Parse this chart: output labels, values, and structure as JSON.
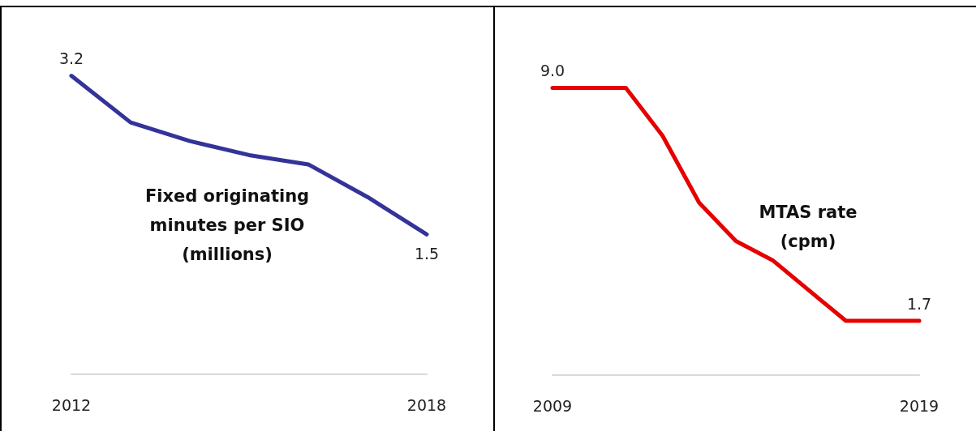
{
  "chart_data": [
    {
      "type": "line",
      "x": [
        2012,
        2013,
        2014,
        2015,
        2016,
        2017,
        2018
      ],
      "xlim": [
        2012,
        2018
      ],
      "xticks": [
        2012,
        2018
      ],
      "tick_labels": "x",
      "marker": "none",
      "series": [
        {
          "color": "#333399",
          "values": [
            3.2,
            2.7,
            2.5,
            2.35,
            2.25,
            1.9,
            1.5
          ],
          "value_labels": [
            "3.2",
            null,
            null,
            null,
            null,
            null,
            "1.5"
          ]
        }
      ],
      "annotations": [
        "Fixed originating\nminutes per SIO\n(millions)"
      ]
    },
    {
      "type": "line",
      "x": [
        2009,
        2011,
        2012,
        2013,
        2014,
        2015,
        2017,
        2019
      ],
      "xlim": [
        2009,
        2019
      ],
      "xticks": [
        2009,
        2019
      ],
      "tick_labels": "x",
      "marker": "none",
      "series": [
        {
          "color": "#e60000",
          "values": [
            9.0,
            9.0,
            7.5,
            5.4,
            4.2,
            3.6,
            1.7,
            1.7
          ],
          "value_labels": [
            "9.0",
            null,
            null,
            null,
            null,
            null,
            null,
            "1.7"
          ]
        }
      ],
      "annotations": [
        "MTAS rate\n(cpm)"
      ]
    }
  ]
}
